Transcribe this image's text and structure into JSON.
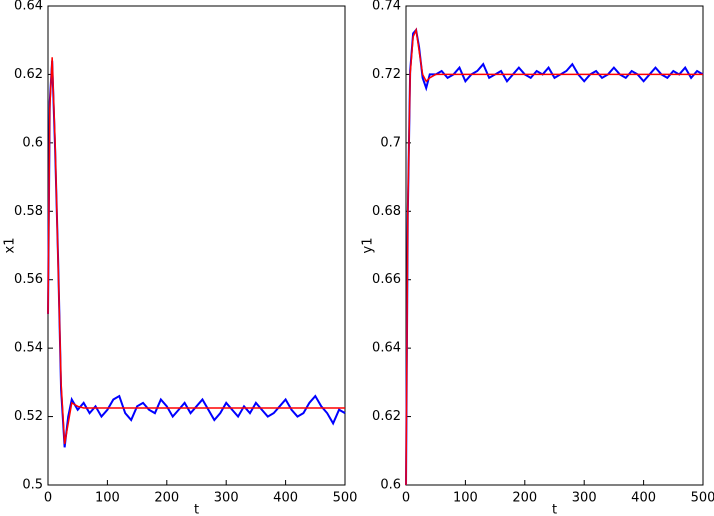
{
  "chart_data": [
    {
      "type": "line",
      "xlabel": "t",
      "ylabel": "x1",
      "x": [
        0,
        3,
        7,
        12,
        17,
        22,
        28,
        34,
        40,
        50,
        60,
        70,
        80,
        90,
        100,
        110,
        120,
        130,
        140,
        150,
        160,
        170,
        180,
        190,
        200,
        210,
        220,
        230,
        240,
        250,
        260,
        270,
        280,
        290,
        300,
        310,
        320,
        330,
        340,
        350,
        360,
        370,
        380,
        390,
        400,
        410,
        420,
        430,
        440,
        450,
        460,
        470,
        480,
        490,
        500
      ],
      "series": [
        {
          "color": "#0000ff",
          "values": [
            0.55,
            0.612,
            0.624,
            0.598,
            0.566,
            0.528,
            0.511,
            0.52,
            0.525,
            0.522,
            0.524,
            0.521,
            0.523,
            0.52,
            0.522,
            0.525,
            0.526,
            0.521,
            0.519,
            0.523,
            0.524,
            0.522,
            0.521,
            0.525,
            0.523,
            0.52,
            0.522,
            0.524,
            0.521,
            0.523,
            0.525,
            0.522,
            0.519,
            0.521,
            0.524,
            0.522,
            0.52,
            0.523,
            0.521,
            0.524,
            0.522,
            0.52,
            0.521,
            0.523,
            0.525,
            0.522,
            0.52,
            0.521,
            0.524,
            0.526,
            0.523,
            0.521,
            0.518,
            0.522,
            0.521
          ]
        },
        {
          "color": "#ff0000",
          "values": [
            0.55,
            0.61,
            0.625,
            0.6,
            0.565,
            0.53,
            0.512,
            0.518,
            0.524,
            0.523,
            0.5225,
            0.5225,
            0.5225,
            0.5225,
            0.5225,
            0.5225,
            0.5225,
            0.5225,
            0.5225,
            0.5225,
            0.5225,
            0.5225,
            0.5225,
            0.5225,
            0.5225,
            0.5225,
            0.5225,
            0.5225,
            0.5225,
            0.5225,
            0.5225,
            0.5225,
            0.5225,
            0.5225,
            0.5225,
            0.5225,
            0.5225,
            0.5225,
            0.5225,
            0.5225,
            0.5225,
            0.5225,
            0.5225,
            0.5225,
            0.5225,
            0.5225,
            0.5225,
            0.5225,
            0.5225,
            0.5225,
            0.5225,
            0.5225,
            0.5225,
            0.5225,
            0.5225
          ]
        }
      ],
      "xlim": [
        0,
        500
      ],
      "xticks": [
        0,
        100,
        200,
        300,
        400,
        500
      ],
      "ylim": [
        0.5,
        0.64
      ],
      "yticks": [
        0.5,
        0.52,
        0.54,
        0.56,
        0.58,
        0.6,
        0.62,
        0.64
      ]
    },
    {
      "type": "line",
      "xlabel": "t",
      "ylabel": "y1",
      "x": [
        0,
        3,
        7,
        12,
        17,
        22,
        28,
        34,
        40,
        50,
        60,
        70,
        80,
        90,
        100,
        110,
        120,
        130,
        140,
        150,
        160,
        170,
        180,
        190,
        200,
        210,
        220,
        230,
        240,
        250,
        260,
        270,
        280,
        290,
        300,
        310,
        320,
        330,
        340,
        350,
        360,
        370,
        380,
        390,
        400,
        410,
        420,
        430,
        440,
        450,
        460,
        470,
        480,
        490,
        500
      ],
      "series": [
        {
          "color": "#0000ff",
          "values": [
            0.6,
            0.679,
            0.721,
            0.732,
            0.733,
            0.728,
            0.719,
            0.716,
            0.72,
            0.72,
            0.721,
            0.719,
            0.72,
            0.722,
            0.718,
            0.72,
            0.721,
            0.723,
            0.719,
            0.72,
            0.721,
            0.718,
            0.72,
            0.722,
            0.72,
            0.719,
            0.721,
            0.72,
            0.722,
            0.719,
            0.72,
            0.721,
            0.723,
            0.72,
            0.718,
            0.72,
            0.721,
            0.719,
            0.72,
            0.722,
            0.72,
            0.719,
            0.721,
            0.72,
            0.718,
            0.72,
            0.722,
            0.72,
            0.719,
            0.721,
            0.72,
            0.722,
            0.719,
            0.721,
            0.72
          ]
        },
        {
          "color": "#ff0000",
          "values": [
            0.6,
            0.68,
            0.72,
            0.731,
            0.733,
            0.727,
            0.72,
            0.718,
            0.719,
            0.72,
            0.72,
            0.72,
            0.72,
            0.72,
            0.72,
            0.72,
            0.72,
            0.72,
            0.72,
            0.72,
            0.72,
            0.72,
            0.72,
            0.72,
            0.72,
            0.72,
            0.72,
            0.72,
            0.72,
            0.72,
            0.72,
            0.72,
            0.72,
            0.72,
            0.72,
            0.72,
            0.72,
            0.72,
            0.72,
            0.72,
            0.72,
            0.72,
            0.72,
            0.72,
            0.72,
            0.72,
            0.72,
            0.72,
            0.72,
            0.72,
            0.72,
            0.72,
            0.72,
            0.72,
            0.72
          ]
        }
      ],
      "xlim": [
        0,
        500
      ],
      "xticks": [
        0,
        100,
        200,
        300,
        400,
        500
      ],
      "ylim": [
        0.6,
        0.74
      ],
      "yticks": [
        0.6,
        0.62,
        0.64,
        0.66,
        0.68,
        0.7,
        0.72,
        0.74
      ]
    }
  ]
}
